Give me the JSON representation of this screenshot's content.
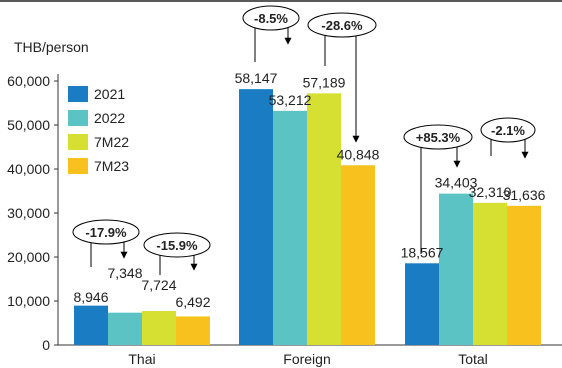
{
  "chart_data": {
    "type": "bar",
    "ylabel": "THB/person",
    "ylim": [
      0,
      70000
    ],
    "yticks": [
      "0",
      "10,000",
      "20,000",
      "30,000",
      "40,000",
      "50,000",
      "60,000"
    ],
    "ytick_values": [
      0,
      10000,
      20000,
      30000,
      40000,
      50000,
      60000
    ],
    "categories": [
      "Thai",
      "Foreign",
      "Total"
    ],
    "series": [
      {
        "name": "2021",
        "color": "#1A7CC2",
        "values": [
          8946,
          58147,
          18567
        ],
        "labels": [
          "8,946",
          "58,147",
          "18,567"
        ]
      },
      {
        "name": "2022",
        "color": "#5BC3C3",
        "values": [
          7348,
          53212,
          34403
        ],
        "labels": [
          "7,348",
          "53,212",
          "34,403"
        ]
      },
      {
        "name": "7M22",
        "color": "#D6E032",
        "values": [
          7724,
          57189,
          32310
        ],
        "labels": [
          "7,724",
          "57,189",
          "32,310"
        ]
      },
      {
        "name": "7M23",
        "color": "#F8C11E",
        "values": [
          6492,
          40848,
          31636
        ],
        "labels": [
          "6,492",
          "40,848",
          "31,636"
        ]
      }
    ],
    "annotations": [
      {
        "text": "-17.9%",
        "category": 0,
        "from_series": 0,
        "to_series": 1
      },
      {
        "text": "-15.9%",
        "category": 0,
        "from_series": 2,
        "to_series": 3
      },
      {
        "text": "-8.5%",
        "category": 1,
        "from_series": 0,
        "to_series": 1
      },
      {
        "text": "-28.6%",
        "category": 1,
        "from_series": 2,
        "to_series": 3
      },
      {
        "text": "+85.3%",
        "category": 2,
        "from_series": 0,
        "to_series": 1
      },
      {
        "text": "-2.1%",
        "category": 2,
        "from_series": 2,
        "to_series": 3
      }
    ],
    "legend_position": "top-left",
    "grid": false
  }
}
